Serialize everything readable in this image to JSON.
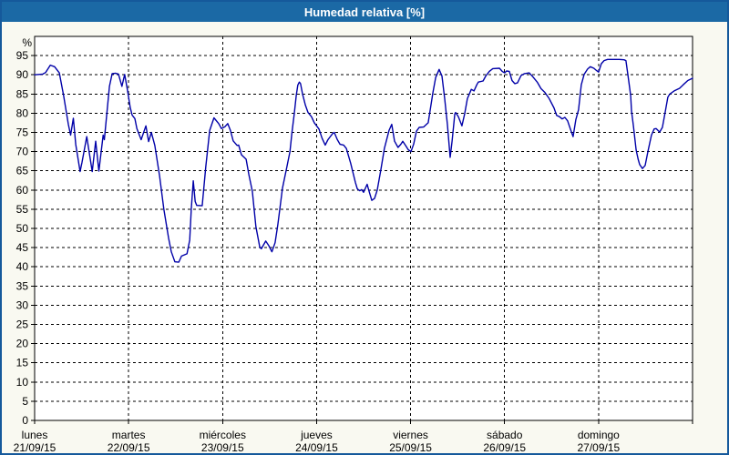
{
  "window": {
    "title": "Humedad relativa [%]"
  },
  "colors": {
    "titlebar_bg": "#1b69a5",
    "title_text": "#ffffff",
    "window_bg": "#f9f9f1",
    "window_border": "#15599b",
    "plot_bg": "#ffffff",
    "grid": "#000000",
    "axis": "#000000",
    "tick_text": "#000000",
    "line": "#0000a8"
  },
  "chart_data": {
    "type": "line",
    "title": "Humedad relativa [%]",
    "ylabel": "%",
    "ylim": [
      0,
      100
    ],
    "y_ticks": [
      0,
      5,
      10,
      15,
      20,
      25,
      30,
      35,
      40,
      45,
      50,
      55,
      60,
      65,
      70,
      75,
      80,
      85,
      90,
      95
    ],
    "grid": "dashed",
    "legend": "none",
    "x_unit": "hours_from_start",
    "xlim": [
      0,
      168
    ],
    "x_axis_days": [
      {
        "name": "lunes",
        "date": "21/09/15"
      },
      {
        "name": "martes",
        "date": "22/09/15"
      },
      {
        "name": "miércoles",
        "date": "23/09/15"
      },
      {
        "name": "jueves",
        "date": "24/09/15"
      },
      {
        "name": "viernes",
        "date": "25/09/15"
      },
      {
        "name": "sábado",
        "date": "26/09/15"
      },
      {
        "name": "domingo",
        "date": "27/09/15"
      }
    ],
    "series": [
      {
        "name": "Humedad relativa",
        "points": [
          [
            0,
            90
          ],
          [
            2.1,
            90.2
          ],
          [
            2.8,
            90.6
          ],
          [
            4,
            92.5
          ],
          [
            5.1,
            92.1
          ],
          [
            6.3,
            90.5
          ],
          [
            7.4,
            84.6
          ],
          [
            8.6,
            77.1
          ],
          [
            9.2,
            74.3
          ],
          [
            9.9,
            78.7
          ],
          [
            10.5,
            71.9
          ],
          [
            11.6,
            64.8
          ],
          [
            12.1,
            67.2
          ],
          [
            13.3,
            73.9
          ],
          [
            14.7,
            64.8
          ],
          [
            15.6,
            72.7
          ],
          [
            16.4,
            64.9
          ],
          [
            17.5,
            74.3
          ],
          [
            17.8,
            73.1
          ],
          [
            19.1,
            87
          ],
          [
            19.8,
            90.3
          ],
          [
            20.7,
            90.4
          ],
          [
            21.4,
            90.2
          ],
          [
            22.3,
            87
          ],
          [
            23,
            90.1
          ],
          [
            23.7,
            86
          ],
          [
            24.4,
            81.5
          ],
          [
            24.9,
            79.5
          ],
          [
            25.6,
            78.6
          ],
          [
            26.1,
            76
          ],
          [
            27.2,
            73.1
          ],
          [
            28.4,
            76.7
          ],
          [
            29.1,
            72.6
          ],
          [
            29.8,
            75
          ],
          [
            30.7,
            71.6
          ],
          [
            31.9,
            63.7
          ],
          [
            33,
            55
          ],
          [
            34.2,
            47.5
          ],
          [
            34.9,
            43.9
          ],
          [
            35.8,
            41.3
          ],
          [
            36.8,
            41.2
          ],
          [
            37.5,
            42.8
          ],
          [
            38.9,
            43.4
          ],
          [
            39.6,
            47
          ],
          [
            40,
            55
          ],
          [
            40.5,
            62.4
          ],
          [
            41,
            57
          ],
          [
            41.4,
            56
          ],
          [
            42.8,
            55.9
          ],
          [
            43.7,
            66
          ],
          [
            44.7,
            75.5
          ],
          [
            45.8,
            78.8
          ],
          [
            47,
            77.3
          ],
          [
            47.7,
            76
          ],
          [
            48.6,
            76.5
          ],
          [
            49.3,
            77.3
          ],
          [
            50,
            75.5
          ],
          [
            50.7,
            72.8
          ],
          [
            51.7,
            71.6
          ],
          [
            52.1,
            71.7
          ],
          [
            52.8,
            69.2
          ],
          [
            54,
            68
          ],
          [
            54.7,
            64
          ],
          [
            55.6,
            59.7
          ],
          [
            56.5,
            50.5
          ],
          [
            57.5,
            45.1
          ],
          [
            57.9,
            44.7
          ],
          [
            59,
            46.7
          ],
          [
            59.8,
            45.5
          ],
          [
            60.6,
            43.9
          ],
          [
            61.4,
            46.3
          ],
          [
            62.1,
            51
          ],
          [
            63.3,
            60.5
          ],
          [
            64.4,
            66
          ],
          [
            65.2,
            70
          ],
          [
            65.7,
            75
          ],
          [
            66.3,
            79.8
          ],
          [
            66.8,
            84.6
          ],
          [
            67.2,
            87.3
          ],
          [
            67.6,
            88.1
          ],
          [
            67.9,
            87.7
          ],
          [
            68.4,
            85
          ],
          [
            69.1,
            82.2
          ],
          [
            69.8,
            80.2
          ],
          [
            70.7,
            79.1
          ],
          [
            71.4,
            77.5
          ],
          [
            72.6,
            75.9
          ],
          [
            73.4,
            73.5
          ],
          [
            74.2,
            71.7
          ],
          [
            74.9,
            73.1
          ],
          [
            76.1,
            74.7
          ],
          [
            76.5,
            75
          ],
          [
            77.3,
            73.1
          ],
          [
            78,
            71.9
          ],
          [
            78.9,
            71.7
          ],
          [
            79.6,
            70.8
          ],
          [
            80.7,
            67
          ],
          [
            81.9,
            62
          ],
          [
            82.4,
            60.3
          ],
          [
            83,
            59.8
          ],
          [
            83.5,
            60.1
          ],
          [
            84,
            59.4
          ],
          [
            84.9,
            61.5
          ],
          [
            85.4,
            59.7
          ],
          [
            86.1,
            57.3
          ],
          [
            86.8,
            57.8
          ],
          [
            87.5,
            60
          ],
          [
            88.4,
            65.2
          ],
          [
            89.3,
            70.8
          ],
          [
            90.5,
            75.5
          ],
          [
            91.2,
            77.1
          ],
          [
            91.9,
            72.7
          ],
          [
            92.8,
            71.1
          ],
          [
            93.5,
            71.9
          ],
          [
            94,
            72.7
          ],
          [
            94.7,
            71.6
          ],
          [
            95.4,
            70.5
          ],
          [
            96.1,
            70
          ],
          [
            96.8,
            72
          ],
          [
            97.5,
            75.3
          ],
          [
            98.2,
            76.3
          ],
          [
            99.3,
            76.4
          ],
          [
            100.5,
            77.5
          ],
          [
            101.7,
            85.4
          ],
          [
            102.4,
            89.3
          ],
          [
            103.3,
            91.4
          ],
          [
            104,
            89.7
          ],
          [
            104.7,
            83.8
          ],
          [
            105.4,
            77
          ],
          [
            106.1,
            68.5
          ],
          [
            106.6,
            72.7
          ],
          [
            107.3,
            79.8
          ],
          [
            107.5,
            80.2
          ],
          [
            108.2,
            79.1
          ],
          [
            109.1,
            76.7
          ],
          [
            109.8,
            79.8
          ],
          [
            110.5,
            83.8
          ],
          [
            111.5,
            86.2
          ],
          [
            112.2,
            85.8
          ],
          [
            112.9,
            87.4
          ],
          [
            113.3,
            88.1
          ],
          [
            114.5,
            88.4
          ],
          [
            115.2,
            89.7
          ],
          [
            116.1,
            90.9
          ],
          [
            117,
            91.6
          ],
          [
            118.7,
            91.7
          ],
          [
            119.4,
            90.9
          ],
          [
            120,
            90.5
          ],
          [
            120.5,
            91
          ],
          [
            121.2,
            90.9
          ],
          [
            121.9,
            88.5
          ],
          [
            122.6,
            87.7
          ],
          [
            123.3,
            87.9
          ],
          [
            124.2,
            89.8
          ],
          [
            125.1,
            90.3
          ],
          [
            126.3,
            90.5
          ],
          [
            127.2,
            89.5
          ],
          [
            128.4,
            88
          ],
          [
            129.3,
            86.4
          ],
          [
            130.3,
            85.4
          ],
          [
            131.4,
            83.8
          ],
          [
            132.6,
            81.4
          ],
          [
            133.3,
            79.4
          ],
          [
            134,
            79.1
          ],
          [
            134.7,
            78.5
          ],
          [
            135.4,
            78.9
          ],
          [
            136.1,
            78
          ],
          [
            136.8,
            75.9
          ],
          [
            137.5,
            73.9
          ],
          [
            138.2,
            78.3
          ],
          [
            138.9,
            80.9
          ],
          [
            139.6,
            87.4
          ],
          [
            140.3,
            90.1
          ],
          [
            141.2,
            91.5
          ],
          [
            141.9,
            92.1
          ],
          [
            142.8,
            91.7
          ],
          [
            143.5,
            91.1
          ],
          [
            144,
            90.7
          ],
          [
            144.7,
            92.9
          ],
          [
            145.4,
            93.7
          ],
          [
            146.3,
            94
          ],
          [
            149.3,
            94
          ],
          [
            150.5,
            93.9
          ],
          [
            151,
            93.7
          ],
          [
            151.7,
            88.5
          ],
          [
            152.2,
            84.6
          ],
          [
            152.4,
            80.6
          ],
          [
            152.9,
            76.7
          ],
          [
            153.6,
            70.4
          ],
          [
            154.1,
            68
          ],
          [
            154.5,
            66.6
          ],
          [
            155.2,
            65.6
          ],
          [
            155.9,
            66.4
          ],
          [
            156.6,
            70
          ],
          [
            157.5,
            74.3
          ],
          [
            158.2,
            75.9
          ],
          [
            158.7,
            76
          ],
          [
            159.6,
            75.1
          ],
          [
            160.3,
            76.3
          ],
          [
            161,
            80.2
          ],
          [
            161.7,
            84.2
          ],
          [
            162.2,
            85
          ],
          [
            163.3,
            85.8
          ],
          [
            164.7,
            86.5
          ],
          [
            165.6,
            87.4
          ],
          [
            166.8,
            88.5
          ],
          [
            168,
            89.1
          ]
        ]
      }
    ]
  }
}
